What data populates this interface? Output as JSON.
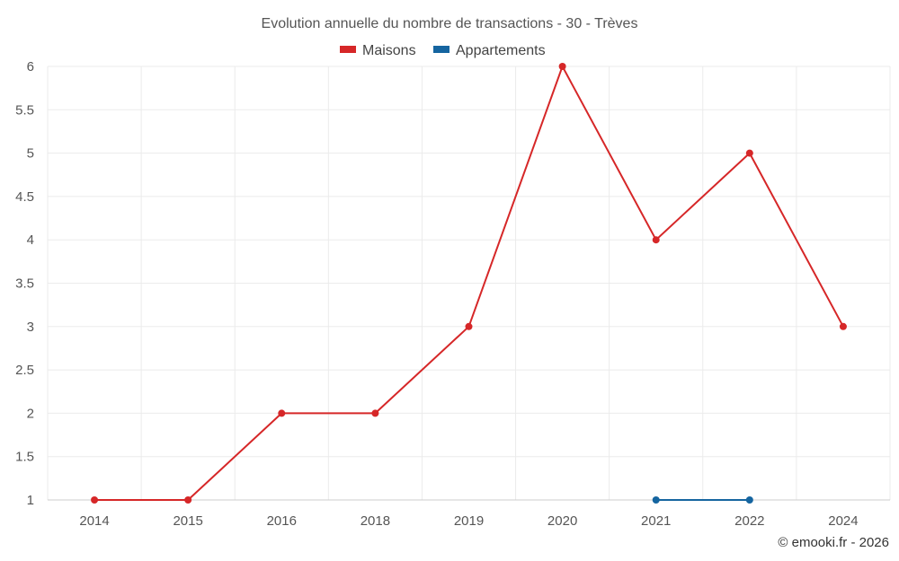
{
  "chart_data": {
    "type": "line",
    "title": "Evolution annuelle du nombre de transactions - 30 - Trèves",
    "categories": [
      "2014",
      "2015",
      "2016",
      "2018",
      "2019",
      "2020",
      "2021",
      "2022",
      "2024"
    ],
    "series": [
      {
        "name": "Maisons",
        "color": "#d62728",
        "values": [
          1,
          1,
          2,
          2,
          3,
          6,
          4,
          5,
          3
        ]
      },
      {
        "name": "Appartements",
        "color": "#1565a0",
        "values": [
          null,
          null,
          null,
          null,
          null,
          null,
          1,
          1,
          null
        ]
      }
    ],
    "y_ticks": [
      "1",
      "1.5",
      "2",
      "2.5",
      "3",
      "3.5",
      "4",
      "4.5",
      "5",
      "5.5",
      "6"
    ],
    "ylim": [
      1,
      6
    ],
    "xlabel": "",
    "ylabel": "",
    "grid": true,
    "legend_position": "top-center"
  },
  "credit": "© emooki.fr - 2026"
}
